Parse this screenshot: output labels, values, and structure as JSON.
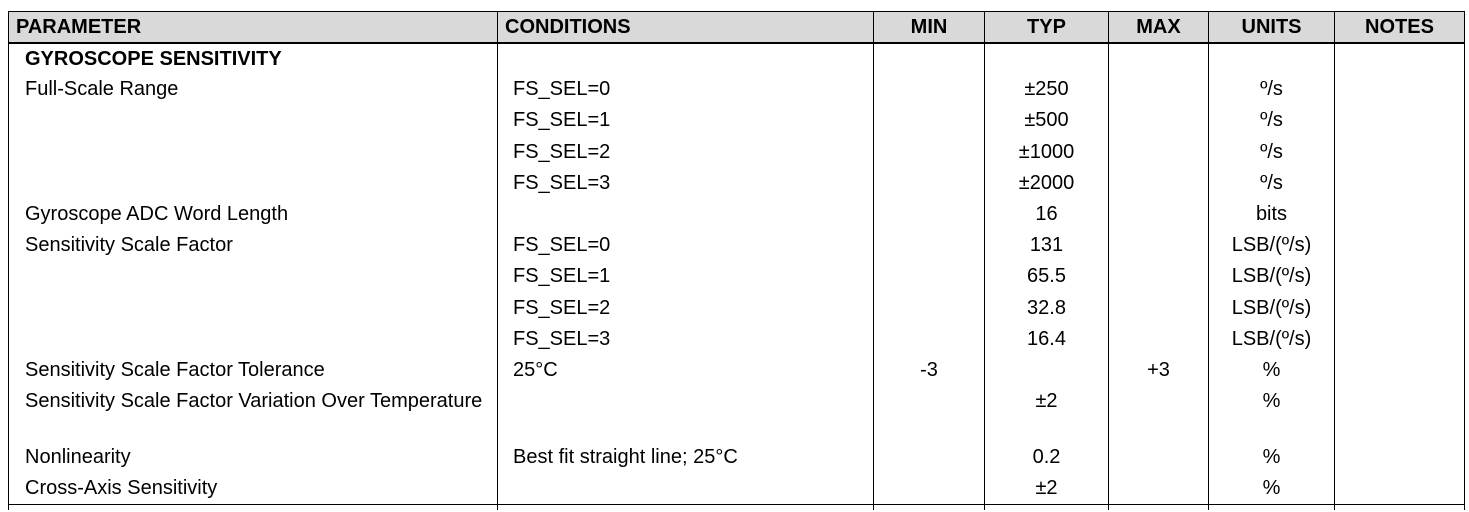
{
  "headers": {
    "parameter": "PARAMETER",
    "conditions": "CONDITIONS",
    "min": "MIN",
    "typ": "TYP",
    "max": "MAX",
    "units": "UNITS",
    "notes": "NOTES"
  },
  "section": {
    "title": "GYROSCOPE SENSITIVITY"
  },
  "rows": [
    {
      "parameter": "Full-Scale Range",
      "conditions": "FS_SEL=0",
      "min": "",
      "typ": "±250",
      "max": "",
      "units": "º/s",
      "notes": ""
    },
    {
      "parameter": "",
      "conditions": "FS_SEL=1",
      "min": "",
      "typ": "±500",
      "max": "",
      "units": "º/s",
      "notes": ""
    },
    {
      "parameter": "",
      "conditions": "FS_SEL=2",
      "min": "",
      "typ": "±1000",
      "max": "",
      "units": "º/s",
      "notes": ""
    },
    {
      "parameter": "",
      "conditions": "FS_SEL=3",
      "min": "",
      "typ": "±2000",
      "max": "",
      "units": "º/s",
      "notes": ""
    },
    {
      "parameter": "Gyroscope ADC Word Length",
      "conditions": "",
      "min": "",
      "typ": "16",
      "max": "",
      "units": "bits",
      "notes": ""
    },
    {
      "parameter": "Sensitivity Scale Factor",
      "conditions": "FS_SEL=0",
      "min": "",
      "typ": "131",
      "max": "",
      "units": "LSB/(º/s)",
      "notes": ""
    },
    {
      "parameter": "",
      "conditions": "FS_SEL=1",
      "min": "",
      "typ": "65.5",
      "max": "",
      "units": "LSB/(º/s)",
      "notes": ""
    },
    {
      "parameter": "",
      "conditions": "FS_SEL=2",
      "min": "",
      "typ": "32.8",
      "max": "",
      "units": "LSB/(º/s)",
      "notes": ""
    },
    {
      "parameter": "",
      "conditions": "FS_SEL=3",
      "min": "",
      "typ": "16.4",
      "max": "",
      "units": "LSB/(º/s)",
      "notes": ""
    },
    {
      "parameter": "Sensitivity Scale Factor Tolerance",
      "conditions": "25°C",
      "min": "-3",
      "typ": "",
      "max": "+3",
      "units": "%",
      "notes": ""
    },
    {
      "parameter": "Sensitivity Scale Factor Variation Over Temperature",
      "conditions": "",
      "min": "",
      "typ": "±2",
      "max": "",
      "units": "%",
      "notes": ""
    },
    {
      "parameter": "Nonlinearity",
      "conditions": "Best fit straight line; 25°C",
      "min": "",
      "typ": "0.2",
      "max": "",
      "units": "%",
      "notes": ""
    },
    {
      "parameter": "Cross-Axis Sensitivity",
      "conditions": "",
      "min": "",
      "typ": "±2",
      "max": "",
      "units": "%",
      "notes": ""
    }
  ]
}
